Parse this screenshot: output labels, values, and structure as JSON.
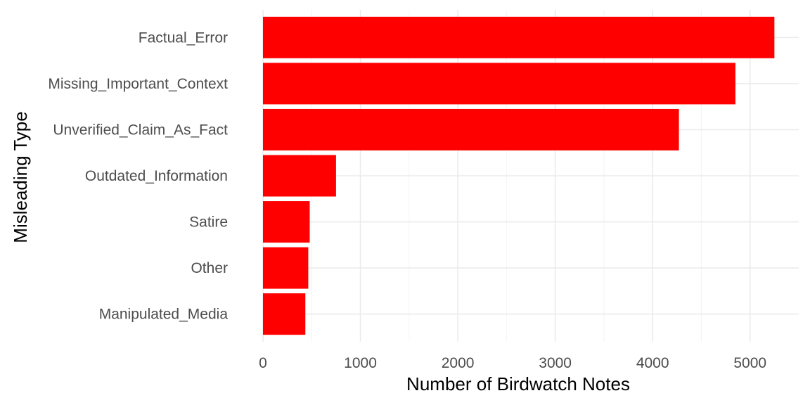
{
  "chart_data": {
    "type": "bar",
    "orientation": "horizontal",
    "xlabel": "Number of Birdwatch Notes",
    "ylabel": "Misleading Type",
    "categories": [
      "Factual_Error",
      "Missing_Important_Context",
      "Unverified_Claim_As_Fact",
      "Outdated_Information",
      "Satire",
      "Other",
      "Manipulated_Media"
    ],
    "values": [
      5250,
      4850,
      4270,
      750,
      480,
      465,
      435
    ],
    "xlim": [
      0,
      5500
    ],
    "x_ticks": [
      0,
      1000,
      2000,
      3000,
      4000,
      5000
    ],
    "x_tick_labels": [
      "0",
      "1000",
      "2000",
      "3000",
      "4000",
      "5000"
    ],
    "bar_color": "#ff0000",
    "grid": true,
    "legend": "none"
  }
}
